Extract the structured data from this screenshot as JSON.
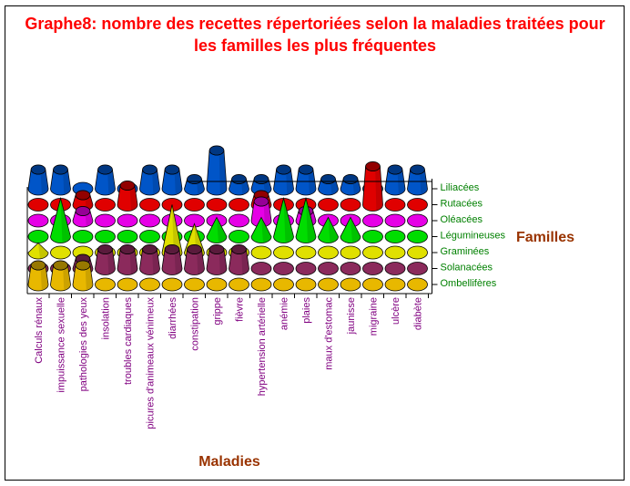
{
  "chart_data": {
    "type": "bar",
    "title": "Graphe8: nombre des recettes répertoriées selon la maladies traitées pour les familles les plus fréquentes",
    "xlabel": "Maladies",
    "ylabel": "Familles",
    "categories": [
      "Calculs rénaux",
      "impuissance sexuelle",
      "pathologies des yeux",
      "insolation",
      "troubles cardiaques",
      "picures d'animeaux vénimeux",
      "diarrhées",
      "constipation",
      "grippe",
      "fièvre",
      "hypertension artérielle",
      "anémie",
      "plaies",
      "maux d'estomac",
      "jaunisse",
      "migraine",
      "ulcère",
      "diabète"
    ],
    "series": [
      {
        "name": "Liliacées",
        "color": "#0055c8",
        "shape": "cylinder",
        "values": [
          2,
          2,
          0,
          2,
          0,
          2,
          2,
          1,
          4,
          1,
          1,
          2,
          2,
          1,
          1,
          0,
          2,
          2
        ]
      },
      {
        "name": "Rutacées",
        "color": "#e00000",
        "shape": "cylinder",
        "values": [
          0,
          0,
          1,
          0,
          2,
          0,
          0,
          0,
          0,
          0,
          1,
          0,
          0,
          0,
          0,
          4,
          0,
          0
        ]
      },
      {
        "name": "Oléacées",
        "color": "#e600e6",
        "shape": "cylinder",
        "values": [
          0,
          0,
          1,
          0,
          0,
          0,
          0,
          0,
          0,
          0,
          2,
          0,
          1,
          0,
          0,
          0,
          0,
          0
        ]
      },
      {
        "name": "Légumineuses",
        "color": "#00dd00",
        "shape": "cone",
        "values": [
          0,
          4,
          0,
          0,
          0,
          0,
          0,
          0,
          2,
          0,
          2,
          4,
          4,
          2,
          2,
          0,
          0,
          0
        ]
      },
      {
        "name": "Graminées",
        "color": "#e0e000",
        "shape": "cone",
        "values": [
          1,
          0,
          0,
          0,
          0,
          0,
          5,
          3,
          0,
          0,
          0,
          0,
          0,
          0,
          0,
          0,
          0,
          0
        ]
      },
      {
        "name": "Solanacées",
        "color": "#8b2a5c",
        "shape": "cylinder",
        "values": [
          0,
          0,
          1,
          2,
          2,
          2,
          2,
          2,
          2,
          2,
          0,
          0,
          0,
          0,
          0,
          0,
          0,
          0
        ]
      },
      {
        "name": "Ombellifères",
        "color": "#e8b800",
        "shape": "cylinder",
        "values": [
          2,
          2,
          2,
          0,
          0,
          0,
          0,
          0,
          0,
          0,
          0,
          0,
          0,
          0,
          0,
          0,
          0,
          0
        ]
      }
    ],
    "legend_placement": "right",
    "grid": false
  }
}
